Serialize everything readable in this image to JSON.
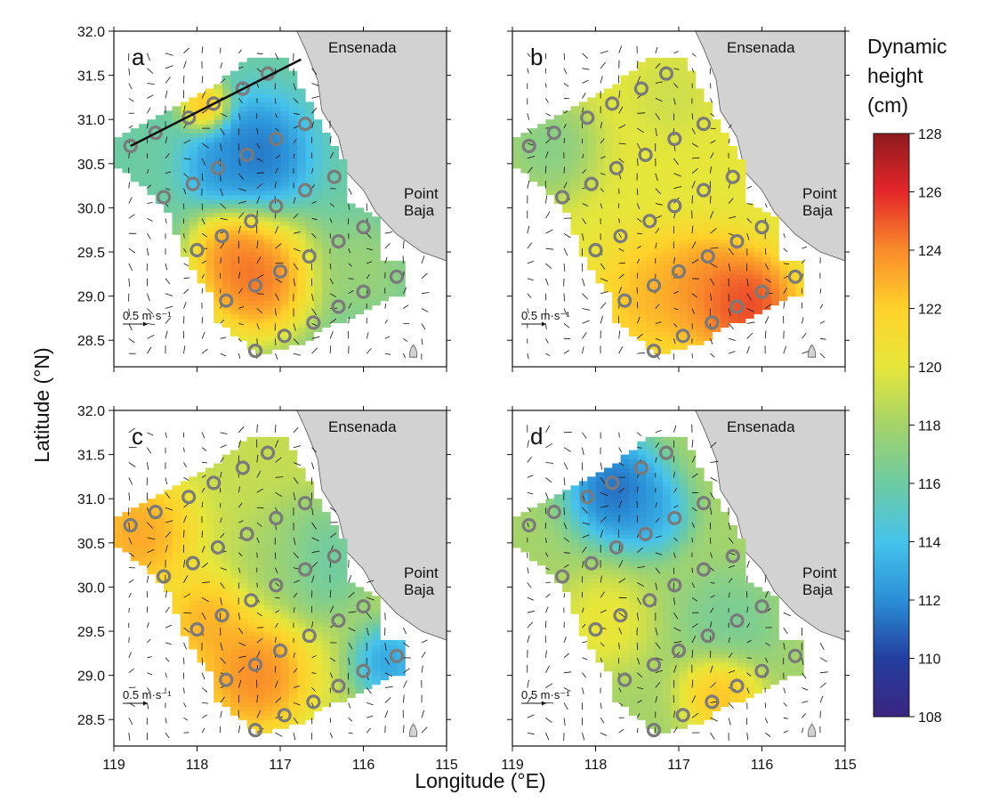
{
  "figure": {
    "xlabel": "Longitude (°E)",
    "ylabel": "Latitude (°N)",
    "x_ticks": [
      "119",
      "118",
      "117",
      "116",
      "115"
    ],
    "y_ticks": [
      "32.0",
      "31.5",
      "31.0",
      "30.5",
      "30.0",
      "29.5",
      "29.0",
      "28.5"
    ],
    "place_top": "Ensenada",
    "place_right_1": "Point",
    "place_right_2": "Baja",
    "scale_label": "0.5 m·s⁻¹"
  },
  "colorbar": {
    "title_lines": [
      "Dynamic",
      "height",
      "(cm)"
    ],
    "min": 108,
    "max": 128,
    "tick_labels": [
      "128",
      "126",
      "124",
      "122",
      "120",
      "118",
      "116",
      "114",
      "112",
      "110",
      "108"
    ],
    "colors": [
      "#3b2580",
      "#233fa0",
      "#2a8fd6",
      "#46c3ec",
      "#6dcba3",
      "#a5d36a",
      "#e6e63a",
      "#ffd22a",
      "#f98b2a",
      "#e4262a",
      "#8e1a1e"
    ]
  },
  "chart_data": {
    "type": "heatmap",
    "xlabel": "Longitude (°E)",
    "ylabel": "Latitude (°N)",
    "xlim": [
      119,
      115
    ],
    "ylim": [
      28.2,
      32.0
    ],
    "colorbar_range": [
      108,
      128
    ],
    "stations": [
      {
        "lon": 118.8,
        "lat": 30.7
      },
      {
        "lon": 118.5,
        "lat": 30.85
      },
      {
        "lon": 118.1,
        "lat": 31.02
      },
      {
        "lon": 117.8,
        "lat": 31.18
      },
      {
        "lon": 117.45,
        "lat": 31.35
      },
      {
        "lon": 117.15,
        "lat": 31.52
      },
      {
        "lon": 118.4,
        "lat": 30.12
      },
      {
        "lon": 118.05,
        "lat": 30.27
      },
      {
        "lon": 117.75,
        "lat": 30.45
      },
      {
        "lon": 117.4,
        "lat": 30.6
      },
      {
        "lon": 117.05,
        "lat": 30.78
      },
      {
        "lon": 116.7,
        "lat": 30.95
      },
      {
        "lon": 117.35,
        "lat": 29.85
      },
      {
        "lon": 117.05,
        "lat": 30.02
      },
      {
        "lon": 116.7,
        "lat": 30.2
      },
      {
        "lon": 116.35,
        "lat": 30.35
      },
      {
        "lon": 118.0,
        "lat": 29.52
      },
      {
        "lon": 117.7,
        "lat": 29.68
      },
      {
        "lon": 116.65,
        "lat": 29.45
      },
      {
        "lon": 116.3,
        "lat": 29.62
      },
      {
        "lon": 116.0,
        "lat": 29.78
      },
      {
        "lon": 117.65,
        "lat": 28.95
      },
      {
        "lon": 117.3,
        "lat": 29.12
      },
      {
        "lon": 117.0,
        "lat": 29.28
      },
      {
        "lon": 116.3,
        "lat": 28.88
      },
      {
        "lon": 116.0,
        "lat": 29.05
      },
      {
        "lon": 115.6,
        "lat": 29.22
      },
      {
        "lon": 117.3,
        "lat": 28.38
      },
      {
        "lon": 116.95,
        "lat": 28.55
      },
      {
        "lon": 116.6,
        "lat": 28.7
      }
    ],
    "domain_polygon_lonlat": [
      [
        119.0,
        30.75
      ],
      [
        118.7,
        30.95
      ],
      [
        118.15,
        31.2
      ],
      [
        117.9,
        31.3
      ],
      [
        117.35,
        31.72
      ],
      [
        116.95,
        31.72
      ],
      [
        116.55,
        31.0
      ],
      [
        116.2,
        30.5
      ],
      [
        116.2,
        30.05
      ],
      [
        115.8,
        29.9
      ],
      [
        115.75,
        29.42
      ],
      [
        115.5,
        29.42
      ],
      [
        115.5,
        29.02
      ],
      [
        115.8,
        28.95
      ],
      [
        116.25,
        28.7
      ],
      [
        116.5,
        28.65
      ],
      [
        116.6,
        28.5
      ],
      [
        117.0,
        28.4
      ],
      [
        117.2,
        28.3
      ],
      [
        117.4,
        28.45
      ],
      [
        117.8,
        28.75
      ],
      [
        117.85,
        29.05
      ],
      [
        118.1,
        29.35
      ],
      [
        118.35,
        29.95
      ],
      [
        118.6,
        30.2
      ],
      [
        118.95,
        30.45
      ]
    ],
    "panels": [
      {
        "label": "a",
        "blobs": [
          {
            "lon": 117.3,
            "lat": 29.2,
            "value": 127,
            "radius": 0.55
          },
          {
            "lon": 117.6,
            "lat": 29.5,
            "value": 125,
            "radius": 0.35
          },
          {
            "lon": 117.3,
            "lat": 30.6,
            "value": 110,
            "radius": 0.5
          },
          {
            "lon": 117.75,
            "lat": 30.45,
            "value": 112,
            "radius": 0.3
          },
          {
            "lon": 117.9,
            "lat": 31.15,
            "value": 125,
            "radius": 0.22
          },
          {
            "lon": 116.0,
            "lat": 29.3,
            "value": 118,
            "radius": 0.4
          }
        ],
        "base": 116
      },
      {
        "label": "b",
        "blobs": [
          {
            "lon": 116.2,
            "lat": 28.9,
            "value": 127,
            "radius": 0.45
          },
          {
            "lon": 116.7,
            "lat": 29.1,
            "value": 125,
            "radius": 0.45
          },
          {
            "lon": 117.3,
            "lat": 29.0,
            "value": 123.5,
            "radius": 0.5
          },
          {
            "lon": 118.6,
            "lat": 30.7,
            "value": 116,
            "radius": 0.45
          },
          {
            "lon": 117.1,
            "lat": 31.3,
            "value": 119,
            "radius": 0.35
          }
        ],
        "base": 120
      },
      {
        "label": "c",
        "blobs": [
          {
            "lon": 118.7,
            "lat": 30.6,
            "value": 124.5,
            "radius": 0.5
          },
          {
            "lon": 117.3,
            "lat": 29.0,
            "value": 125.5,
            "radius": 0.5
          },
          {
            "lon": 117.9,
            "lat": 29.6,
            "value": 124,
            "radius": 0.4
          },
          {
            "lon": 116.5,
            "lat": 30.3,
            "value": 115,
            "radius": 0.5
          },
          {
            "lon": 115.7,
            "lat": 29.15,
            "value": 111,
            "radius": 0.35
          },
          {
            "lon": 117.0,
            "lat": 30.3,
            "value": 118,
            "radius": 0.4
          }
        ],
        "base": 119
      },
      {
        "label": "d",
        "blobs": [
          {
            "lon": 117.75,
            "lat": 31.1,
            "value": 109,
            "radius": 0.45
          },
          {
            "lon": 117.35,
            "lat": 30.85,
            "value": 112,
            "radius": 0.35
          },
          {
            "lon": 116.5,
            "lat": 28.8,
            "value": 124,
            "radius": 0.35
          },
          {
            "lon": 117.9,
            "lat": 29.6,
            "value": 121,
            "radius": 0.4
          },
          {
            "lon": 116.4,
            "lat": 29.6,
            "value": 116,
            "radius": 0.45
          }
        ],
        "base": 118
      }
    ]
  }
}
